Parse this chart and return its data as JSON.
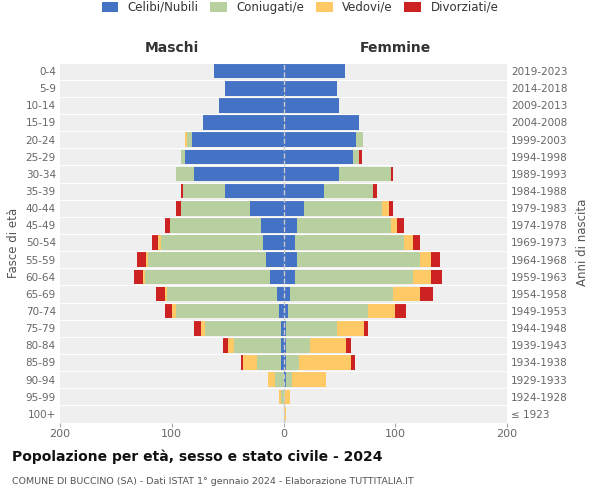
{
  "age_groups": [
    "100+",
    "95-99",
    "90-94",
    "85-89",
    "80-84",
    "75-79",
    "70-74",
    "65-69",
    "60-64",
    "55-59",
    "50-54",
    "45-49",
    "40-44",
    "35-39",
    "30-34",
    "25-29",
    "20-24",
    "15-19",
    "10-14",
    "5-9",
    "0-4"
  ],
  "birth_years": [
    "≤ 1923",
    "1924-1928",
    "1929-1933",
    "1934-1938",
    "1939-1943",
    "1944-1948",
    "1949-1953",
    "1954-1958",
    "1959-1963",
    "1964-1968",
    "1969-1973",
    "1974-1978",
    "1979-1983",
    "1984-1988",
    "1989-1993",
    "1994-1998",
    "1999-2003",
    "2004-2008",
    "2009-2013",
    "2014-2018",
    "2019-2023"
  ],
  "colors": {
    "celibi_nubili": "#4472c4",
    "coniugati": "#b8cfa0",
    "vedovi": "#ffc966",
    "divorziati": "#cc2222"
  },
  "males_celibi": [
    0,
    0,
    0,
    2,
    2,
    2,
    4,
    6,
    12,
    16,
    18,
    20,
    30,
    52,
    80,
    88,
    82,
    72,
    58,
    52,
    62
  ],
  "males_coniugati": [
    0,
    2,
    8,
    22,
    42,
    68,
    92,
    98,
    112,
    105,
    92,
    82,
    62,
    38,
    16,
    4,
    4,
    0,
    0,
    0,
    0
  ],
  "males_vedovi": [
    0,
    2,
    6,
    12,
    6,
    4,
    4,
    2,
    2,
    2,
    2,
    0,
    0,
    0,
    0,
    0,
    2,
    0,
    0,
    0,
    0
  ],
  "males_divorziati": [
    0,
    0,
    0,
    2,
    4,
    6,
    6,
    8,
    8,
    8,
    6,
    4,
    4,
    2,
    0,
    0,
    0,
    0,
    0,
    0,
    0
  ],
  "females_nubili": [
    0,
    0,
    2,
    2,
    2,
    2,
    4,
    6,
    10,
    12,
    10,
    12,
    18,
    36,
    50,
    62,
    65,
    68,
    50,
    48,
    55
  ],
  "females_coniugate": [
    0,
    0,
    6,
    12,
    22,
    46,
    72,
    92,
    106,
    110,
    98,
    84,
    70,
    44,
    46,
    6,
    6,
    0,
    0,
    0,
    0
  ],
  "females_vedove": [
    2,
    6,
    30,
    46,
    32,
    24,
    24,
    24,
    16,
    10,
    8,
    6,
    6,
    0,
    0,
    0,
    0,
    0,
    0,
    0,
    0
  ],
  "females_divorziate": [
    0,
    0,
    0,
    4,
    4,
    4,
    10,
    12,
    10,
    8,
    6,
    6,
    4,
    4,
    2,
    2,
    0,
    0,
    0,
    0,
    0
  ],
  "title": "Popolazione per età, sesso e stato civile - 2024",
  "subtitle": "COMUNE DI BUCCINO (SA) - Dati ISTAT 1° gennaio 2024 - Elaborazione TUTTITALIA.IT",
  "legend_labels": [
    "Celibi/Nubili",
    "Coniugati/e",
    "Vedovi/e",
    "Divorziati/e"
  ],
  "label_maschi": "Maschi",
  "label_femmine": "Femmine",
  "ylabel_left": "Fasce di età",
  "ylabel_right": "Anni di nascita",
  "xlim": 200
}
